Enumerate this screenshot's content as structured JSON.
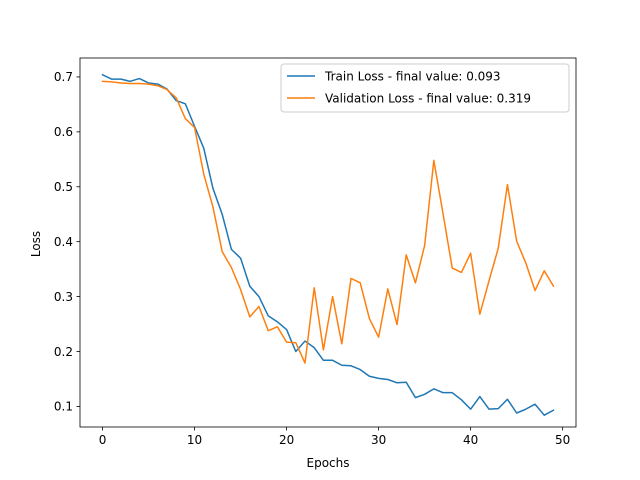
{
  "chart_data": {
    "type": "line",
    "xlabel": "Epochs",
    "ylabel": "Loss",
    "xlim": [
      -2.45,
      51.45
    ],
    "ylim": [
      0.0625,
      0.7345
    ],
    "xticks": [
      0,
      10,
      20,
      30,
      40,
      50
    ],
    "yticks": [
      0.1,
      0.2,
      0.3,
      0.4,
      0.5,
      0.6,
      0.7
    ],
    "grid": false,
    "legend_position": "upper right",
    "x": [
      0,
      1,
      2,
      3,
      4,
      5,
      6,
      7,
      8,
      9,
      10,
      11,
      12,
      13,
      14,
      15,
      16,
      17,
      18,
      19,
      20,
      21,
      22,
      23,
      24,
      25,
      26,
      27,
      28,
      29,
      30,
      31,
      32,
      33,
      34,
      35,
      36,
      37,
      38,
      39,
      40,
      41,
      42,
      43,
      44,
      45,
      46,
      47,
      48,
      49
    ],
    "series": [
      {
        "name": "Train Loss - final value: 0.093",
        "color": "#1f77b4",
        "values": [
          0.704,
          0.696,
          0.696,
          0.692,
          0.697,
          0.689,
          0.687,
          0.678,
          0.657,
          0.651,
          0.61,
          0.57,
          0.497,
          0.45,
          0.386,
          0.37,
          0.319,
          0.3,
          0.265,
          0.254,
          0.24,
          0.2,
          0.219,
          0.207,
          0.184,
          0.184,
          0.175,
          0.174,
          0.167,
          0.155,
          0.151,
          0.149,
          0.143,
          0.144,
          0.116,
          0.122,
          0.132,
          0.125,
          0.125,
          0.112,
          0.095,
          0.118,
          0.095,
          0.096,
          0.113,
          0.088,
          0.095,
          0.104,
          0.084,
          0.093
        ]
      },
      {
        "name": "Validation Loss - final value: 0.319",
        "color": "#ff7f0e",
        "values": [
          0.692,
          0.691,
          0.689,
          0.688,
          0.688,
          0.687,
          0.684,
          0.677,
          0.662,
          0.624,
          0.608,
          0.523,
          0.463,
          0.382,
          0.353,
          0.313,
          0.263,
          0.282,
          0.238,
          0.245,
          0.217,
          0.216,
          0.179,
          0.316,
          0.203,
          0.3,
          0.214,
          0.333,
          0.325,
          0.26,
          0.226,
          0.314,
          0.249,
          0.376,
          0.325,
          0.393,
          0.548,
          0.451,
          0.352,
          0.344,
          0.379,
          0.268,
          0.329,
          0.388,
          0.504,
          0.401,
          0.361,
          0.311,
          0.347,
          0.319
        ]
      }
    ]
  }
}
